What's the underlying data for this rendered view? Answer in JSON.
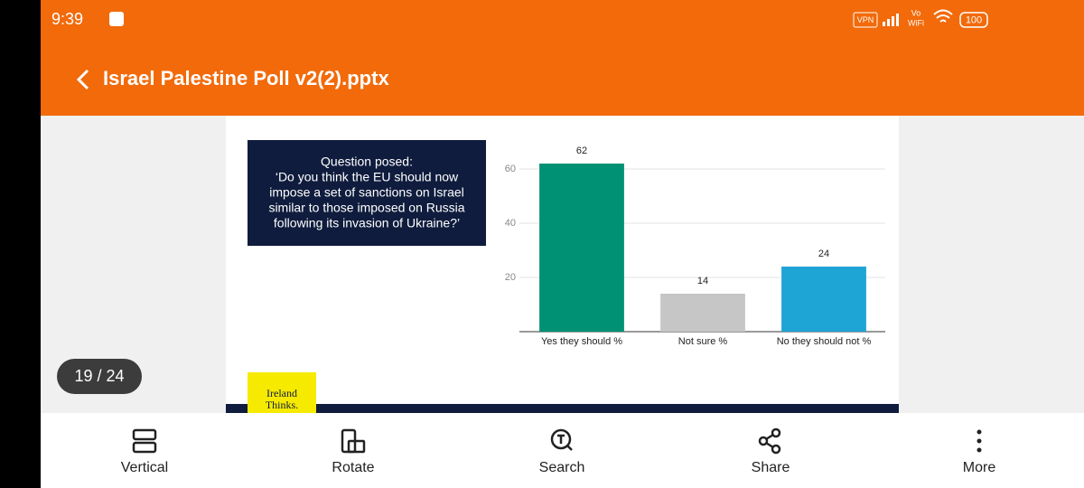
{
  "status_bar": {
    "time": "9:39",
    "vpn": "VPN",
    "vo": "Vo",
    "wifi": "WiFi",
    "battery": "100"
  },
  "header": {
    "title": "Israel Palestine Poll v2(2).pptx"
  },
  "slide": {
    "question_lines": [
      "Question posed:",
      "‘Do you think the EU should now",
      "impose a set of sanctions on Israel",
      "similar to those imposed on Russia",
      "following its invasion of Ukraine?’"
    ],
    "logo": [
      "Ireland",
      "Thinks."
    ]
  },
  "chart_data": {
    "type": "bar",
    "categories": [
      "Yes they should %",
      "Not sure %",
      "No they should not %"
    ],
    "values": [
      62,
      14,
      24
    ],
    "colors": [
      "#009174",
      "#c6c6c6",
      "#1ea4d5"
    ],
    "ylim": [
      0,
      70
    ],
    "yticks": [
      20,
      40,
      60
    ],
    "grid": true
  },
  "page_indicator": "19 / 24",
  "toolbar": {
    "items": [
      "Vertical",
      "Rotate",
      "Search",
      "Share",
      "More"
    ]
  }
}
